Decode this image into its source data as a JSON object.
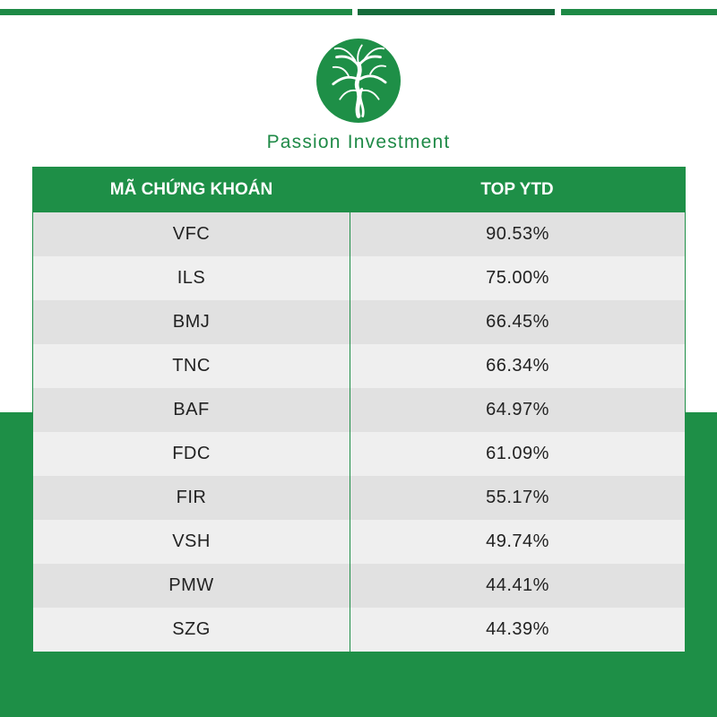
{
  "brand": {
    "name": "Passion Investment",
    "logo_icon": "tree-logo-icon",
    "primary_color": "#1e8f47",
    "dark_color": "#146b3a"
  },
  "table": {
    "headers": [
      "MÃ CHỨNG KHOÁN",
      "TOP YTD"
    ],
    "rows": [
      {
        "code": "VFC",
        "value": "90.53%"
      },
      {
        "code": "ILS",
        "value": "75.00%"
      },
      {
        "code": "BMJ",
        "value": "66.45%"
      },
      {
        "code": "TNC",
        "value": "66.34%"
      },
      {
        "code": "BAF",
        "value": "64.97%"
      },
      {
        "code": "FDC",
        "value": "61.09%"
      },
      {
        "code": "FIR",
        "value": "55.17%"
      },
      {
        "code": "VSH",
        "value": "49.74%"
      },
      {
        "code": "PMW",
        "value": "44.41%"
      },
      {
        "code": "SZG",
        "value": "44.39%"
      }
    ]
  }
}
